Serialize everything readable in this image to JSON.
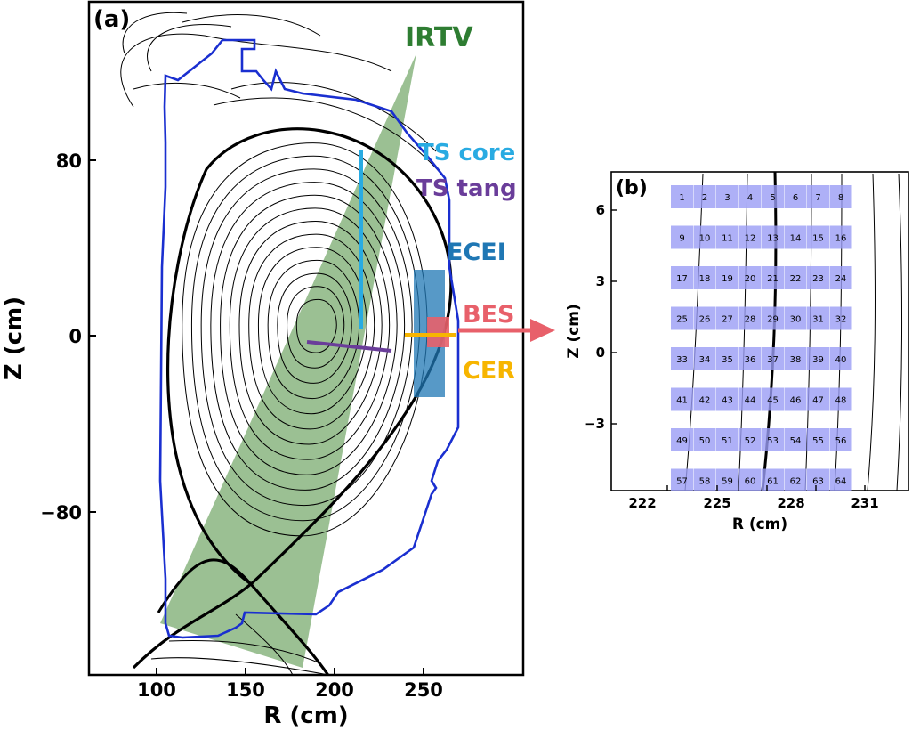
{
  "panel_a": {
    "label": "(a)",
    "xlabel": "R (cm)",
    "ylabel": "Z (cm)",
    "xticks": [
      "100",
      "150",
      "200",
      "250"
    ],
    "yticks": [
      "80",
      "0",
      "−80"
    ],
    "diagnostics": {
      "irtv": {
        "label": "IRTV",
        "color": "#2e7d32"
      },
      "ts_core": {
        "label": "TS core",
        "color": "#29abe2"
      },
      "ts_tang": {
        "label": "TS tang",
        "color": "#6a3d9a"
      },
      "ecei": {
        "label": "ECEI",
        "color": "#1f77b4"
      },
      "bes": {
        "label": "BES",
        "color": "#e8606a"
      },
      "cer": {
        "label": "CER",
        "color": "#f7b500"
      }
    },
    "vessel_color": "#1a2fd0",
    "irtv_fill": "#7fae74"
  },
  "panel_b": {
    "label": "(b)",
    "xlabel": "R (cm)",
    "ylabel": "Z (cm)",
    "xticks": [
      "222",
      "225",
      "228",
      "231"
    ],
    "yticks": [
      "6",
      "3",
      "0",
      "−3"
    ],
    "channel_color": "#9a9cf5",
    "channels": [
      "1",
      "2",
      "3",
      "4",
      "5",
      "6",
      "7",
      "8",
      "9",
      "10",
      "11",
      "12",
      "13",
      "14",
      "15",
      "16",
      "17",
      "18",
      "19",
      "20",
      "21",
      "22",
      "23",
      "24",
      "25",
      "26",
      "27",
      "28",
      "29",
      "30",
      "31",
      "32",
      "33",
      "34",
      "35",
      "36",
      "37",
      "38",
      "39",
      "40",
      "41",
      "42",
      "43",
      "44",
      "45",
      "46",
      "47",
      "48",
      "49",
      "50",
      "51",
      "52",
      "53",
      "54",
      "55",
      "56",
      "57",
      "58",
      "59",
      "60",
      "61",
      "62",
      "63",
      "64"
    ]
  }
}
